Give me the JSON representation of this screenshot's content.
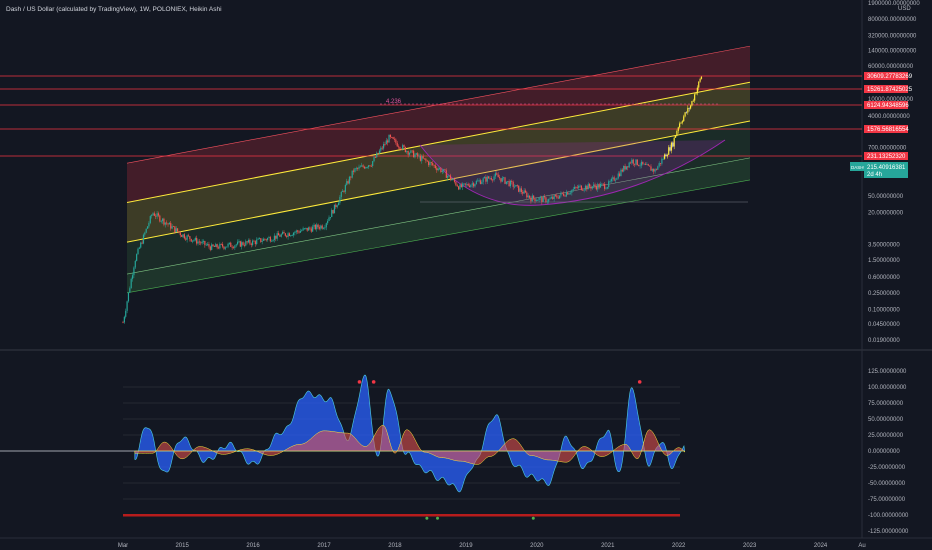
{
  "header": {
    "title": "Dash / US Dollar (calculated by TradingView), 1W, POLONIEX, Heikin Ashi"
  },
  "price_axis": {
    "currency": "USD",
    "labels": [
      "1900000.00000000",
      "800000.00000000",
      "320000.00000000",
      "140000.00000000",
      "60000.00000000",
      "10000.00000000",
      "4000.00000000",
      "700.00000000",
      "50.00000000",
      "20.00000000",
      "3.50000000",
      "1.50000000",
      "0.60000000",
      "0.25000000",
      "0.10000000",
      "0.04500000",
      "0.01900000"
    ]
  },
  "price_tags": [
    {
      "text": "30609.27783269",
      "color": "#f23645"
    },
    {
      "text": "15261.87425025",
      "color": "#f23645"
    },
    {
      "text": "6124.94348596",
      "color": "#f23645"
    },
    {
      "text": "1576.56816554",
      "color": "#f23645"
    },
    {
      "text": "231.13252320",
      "color": "#f23645"
    }
  ],
  "symbol_tag": {
    "symbol": "DASHUSD",
    "price": "215.40916381",
    "countdown": "2d 4h",
    "color": "#26a69a"
  },
  "fib_label": "4.236",
  "oscillator_axis": {
    "labels": [
      "125.00000000",
      "100.00000000",
      "75.00000000",
      "50.00000000",
      "25.00000000",
      "0.00000000",
      "-25.00000000",
      "-50.00000000",
      "-75.00000000",
      "-100.00000000",
      "-125.00000000"
    ]
  },
  "time_axis": {
    "labels": [
      "Mar",
      "2015",
      "2016",
      "2017",
      "2018",
      "2019",
      "2020",
      "2021",
      "2022",
      "2023",
      "2024",
      "Au"
    ]
  },
  "chart_data": [
    {
      "type": "line",
      "scale": "log",
      "x": [
        "2014-03",
        "2014-05",
        "2014-08",
        "2015-01",
        "2015-06",
        "2016-01",
        "2016-06",
        "2017-01",
        "2017-03",
        "2017-06",
        "2017-09",
        "2017-12",
        "2018-03",
        "2018-06",
        "2018-09",
        "2018-12",
        "2019-06",
        "2019-09",
        "2019-12",
        "2020-03",
        "2020-08",
        "2021-01",
        "2021-05",
        "2021-09",
        "2021-12",
        "2022-01",
        "2022-03",
        "2022-05"
      ],
      "series": [
        {
          "values": [
            0.05,
            1.5,
            20,
            6,
            3,
            4,
            6,
            10,
            30,
            200,
            300,
            1200,
            600,
            350,
            200,
            80,
            150,
            90,
            45,
            40,
            80,
            90,
            350,
            200,
            900,
            2500,
            7000,
            40000
          ]
        }
      ],
      "ylim": [
        0.019,
        1900000
      ],
      "grid": false,
      "legend": "none"
    },
    {
      "type": "area",
      "x": [
        "2014-05",
        "2014-07",
        "2014-10",
        "2015-01",
        "2015-05",
        "2015-09",
        "2016-01",
        "2016-06",
        "2016-10",
        "2017-02",
        "2017-05",
        "2017-08",
        "2017-10",
        "2017-12",
        "2018-03",
        "2018-06",
        "2018-09",
        "2018-12",
        "2019-02",
        "2019-06",
        "2019-09",
        "2019-12",
        "2020-03",
        "2020-06",
        "2020-09",
        "2021-01",
        "2021-03",
        "2021-05",
        "2021-08",
        "2021-10",
        "2021-12",
        "2022-02"
      ],
      "series": [
        {
          "values": [
            -10,
            40,
            -35,
            20,
            -15,
            10,
            -20,
            30,
            90,
            80,
            20,
            115,
            -10,
            95,
            -5,
            -30,
            -45,
            -60,
            -25,
            55,
            -20,
            -40,
            -50,
            20,
            -25,
            30,
            -35,
            95,
            -20,
            15,
            -25,
            10
          ]
        }
      ],
      "ylim": [
        -125,
        125
      ],
      "grid": true,
      "legend": "none"
    }
  ]
}
